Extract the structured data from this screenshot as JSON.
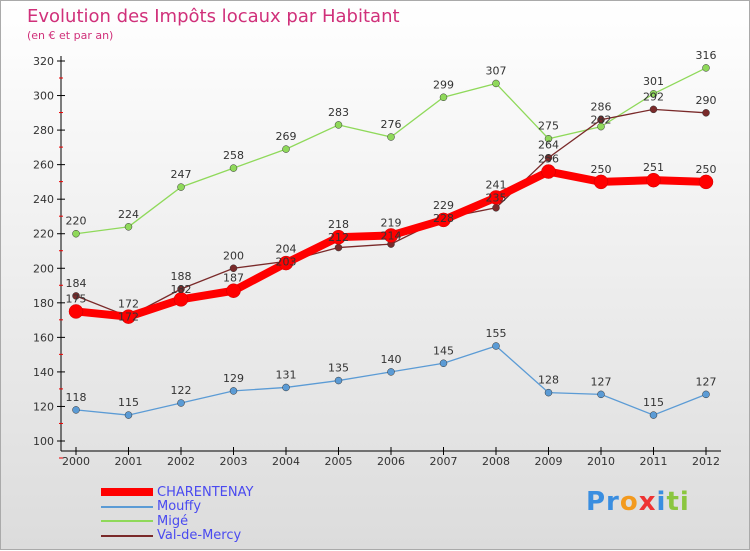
{
  "chart_data": {
    "type": "line",
    "title": "Evolution des Impôts locaux par Habitant",
    "subtitle": "(en € et par an)",
    "x": [
      "2000",
      "2001",
      "2002",
      "2003",
      "2004",
      "2005",
      "2006",
      "2007",
      "2008",
      "2009",
      "2010",
      "2011",
      "2012"
    ],
    "ylim": [
      100,
      320
    ],
    "yticks": [
      "100",
      "120",
      "140",
      "160",
      "180",
      "200",
      "220",
      "240",
      "260",
      "280",
      "300",
      "320"
    ],
    "grid": false,
    "legend_position": "bottom-left",
    "series": [
      {
        "name": "CHARENTENAY",
        "color": "#ff0000",
        "values": [
          175,
          172,
          182,
          187,
          203,
          218,
          219,
          228,
          241,
          256,
          250,
          251,
          250
        ]
      },
      {
        "name": "Mouffy",
        "color": "#5b9bd5",
        "values": [
          118,
          115,
          122,
          129,
          131,
          135,
          140,
          145,
          155,
          128,
          127,
          115,
          127
        ]
      },
      {
        "name": "Migé",
        "color": "#8fd95a",
        "values": [
          220,
          224,
          247,
          258,
          269,
          283,
          276,
          299,
          307,
          275,
          282,
          301,
          316
        ]
      },
      {
        "name": "Val-de-Mercy",
        "color": "#7a2a2a",
        "values": [
          184,
          172,
          188,
          200,
          204,
          212,
          214,
          229,
          235,
          264,
          286,
          292,
          290
        ]
      }
    ]
  },
  "logo": "Proxiti"
}
